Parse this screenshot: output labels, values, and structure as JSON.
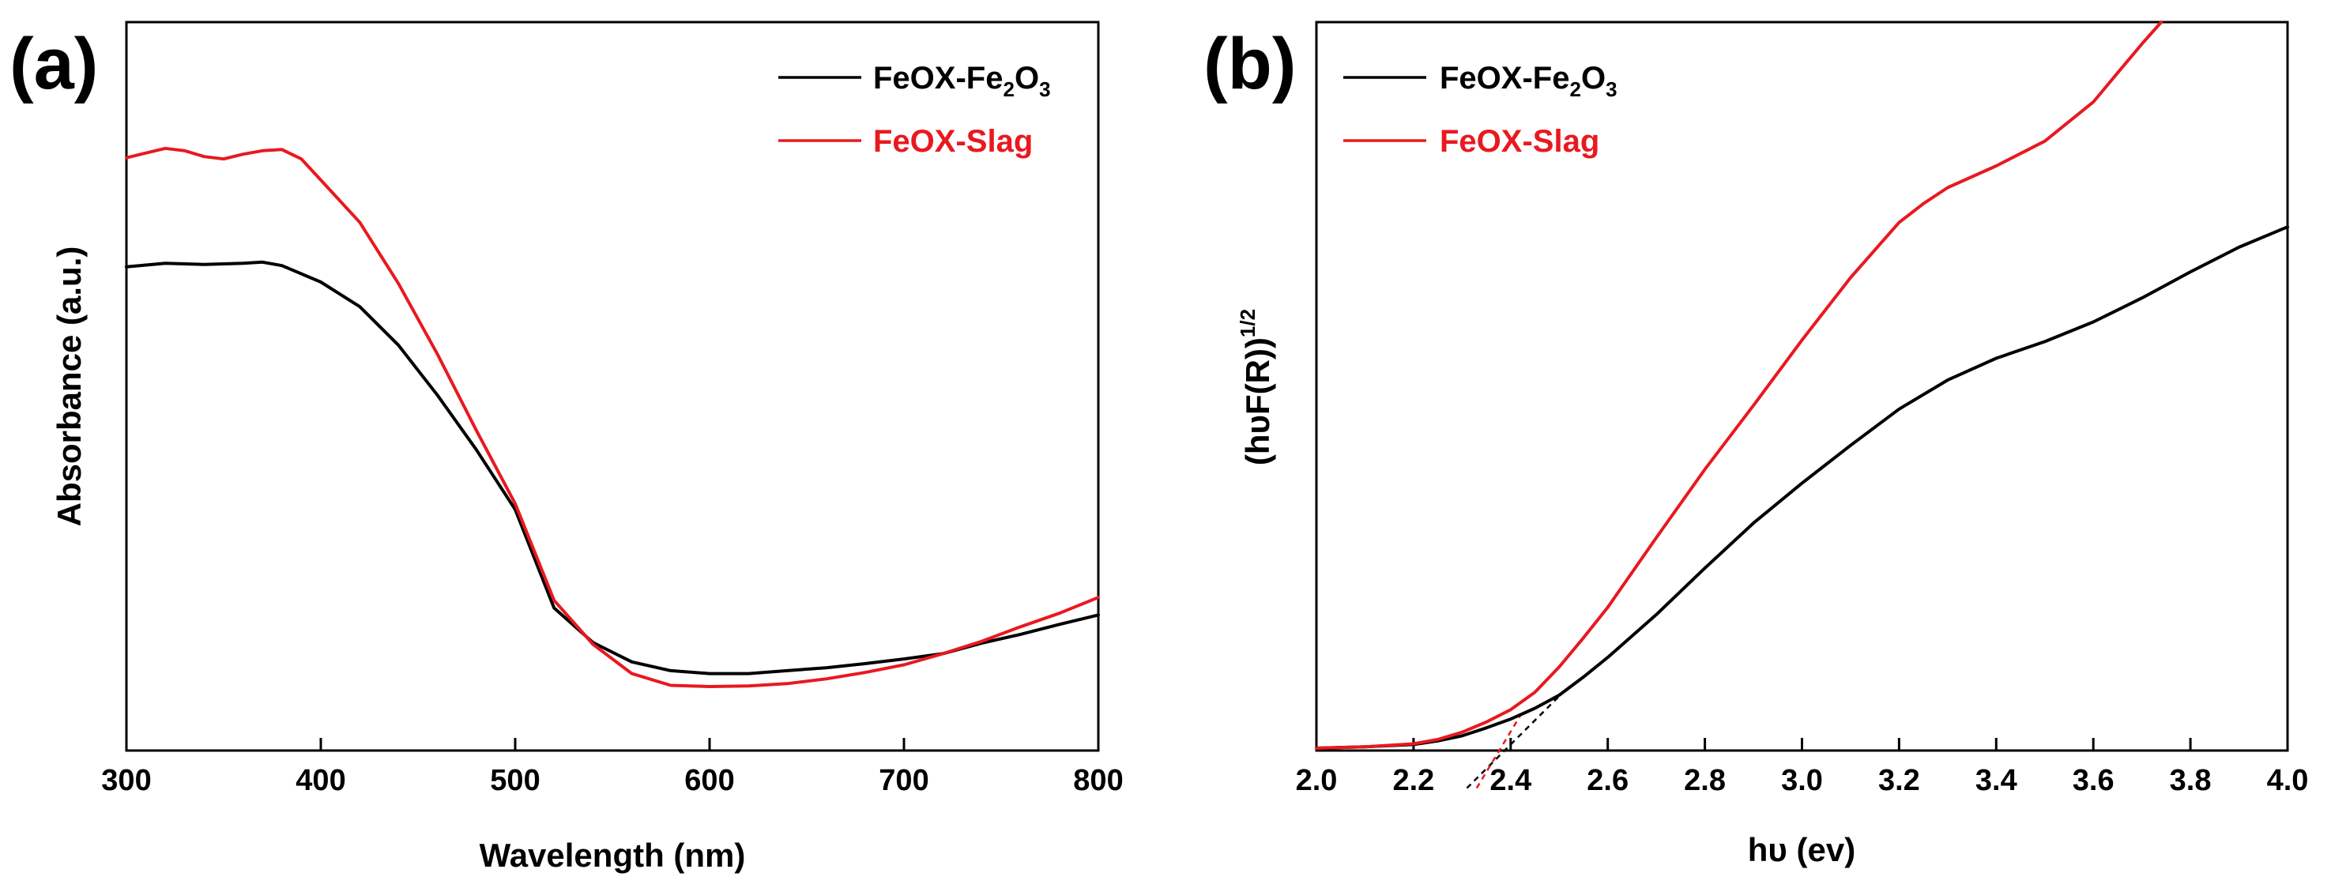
{
  "colors": {
    "black_series": "#000000",
    "red_series": "#e8191f",
    "axis": "#000000",
    "background": "#ffffff"
  },
  "chart_data": [
    {
      "type": "line",
      "panel_label": "(a)",
      "title": "",
      "xlabel": "Wavelength (nm)",
      "ylabel": "Absorbance (a.u.)",
      "xlim": [
        300,
        800
      ],
      "ylim": [
        0,
        1.0
      ],
      "xticks": [
        "300",
        "400",
        "500",
        "600",
        "700",
        "800"
      ],
      "xtick_values": [
        300,
        400,
        500,
        600,
        700,
        800
      ],
      "yticks": [],
      "legend_position": "top-right",
      "series": [
        {
          "name": "FeOX-Fe2O3",
          "legend_main": "FeOX-Fe",
          "legend_sub": "2",
          "legend_main2": "O",
          "legend_sub2": "3",
          "color": "#000000",
          "x": [
            300,
            320,
            340,
            360,
            370,
            380,
            400,
            420,
            440,
            460,
            480,
            500,
            520,
            540,
            560,
            580,
            600,
            620,
            640,
            660,
            680,
            700,
            720,
            740,
            760,
            780,
            800
          ],
          "y": [
            0.774,
            0.78,
            0.778,
            0.78,
            0.782,
            0.776,
            0.748,
            0.706,
            0.64,
            0.555,
            0.462,
            0.36,
            0.192,
            0.133,
            0.1,
            0.085,
            0.08,
            0.08,
            0.085,
            0.09,
            0.097,
            0.105,
            0.114,
            0.132,
            0.147,
            0.164,
            0.18
          ]
        },
        {
          "name": "FeOX-Slag",
          "legend_main": "FeOX-Slag",
          "color": "#e8191f",
          "x": [
            300,
            310,
            320,
            330,
            340,
            350,
            360,
            370,
            380,
            390,
            400,
            420,
            440,
            460,
            480,
            500,
            520,
            540,
            560,
            580,
            600,
            620,
            640,
            660,
            680,
            700,
            720,
            740,
            760,
            780,
            800
          ],
          "y": [
            0.96,
            0.968,
            0.976,
            0.972,
            0.962,
            0.958,
            0.966,
            0.972,
            0.974,
            0.958,
            0.922,
            0.85,
            0.745,
            0.625,
            0.495,
            0.37,
            0.205,
            0.13,
            0.08,
            0.06,
            0.058,
            0.059,
            0.063,
            0.071,
            0.082,
            0.095,
            0.114,
            0.135,
            0.16,
            0.183,
            0.21
          ]
        }
      ]
    },
    {
      "type": "line",
      "panel_label": "(b)",
      "title": "",
      "xlabel": "hυ (ev)",
      "ylabel_main": "(hυF(R))",
      "ylabel_sup": "1/2",
      "xlim": [
        2.0,
        4.0
      ],
      "ylim": [
        0,
        1.0
      ],
      "xticks": [
        "2.0",
        "2.2",
        "2.4",
        "2.6",
        "2.8",
        "3.0",
        "3.2",
        "3.4",
        "3.6",
        "3.8",
        "4.0"
      ],
      "xtick_values": [
        2.0,
        2.2,
        2.4,
        2.6,
        2.8,
        3.0,
        3.2,
        3.4,
        3.6,
        3.8,
        4.0
      ],
      "yticks": [],
      "legend_position": "top-left",
      "series": [
        {
          "name": "FeOX-Fe2O3",
          "legend_main": "FeOX-Fe",
          "legend_sub": "2",
          "legend_main2": "O",
          "legend_sub2": "3",
          "color": "#000000",
          "x": [
            2.0,
            2.1,
            2.2,
            2.25,
            2.3,
            2.35,
            2.4,
            2.45,
            2.5,
            2.55,
            2.6,
            2.7,
            2.8,
            2.9,
            3.0,
            3.1,
            3.2,
            3.3,
            3.4,
            3.5,
            3.6,
            3.7,
            3.8,
            3.9,
            4.0
          ],
          "y": [
            0.0,
            0.002,
            0.005,
            0.01,
            0.017,
            0.028,
            0.04,
            0.055,
            0.073,
            0.098,
            0.125,
            0.184,
            0.248,
            0.31,
            0.365,
            0.417,
            0.467,
            0.507,
            0.537,
            0.56,
            0.587,
            0.62,
            0.656,
            0.69,
            0.718
          ]
        },
        {
          "name": "FeOX-Slag",
          "legend_main": "FeOX-Slag",
          "color": "#e8191f",
          "x": [
            2.0,
            2.1,
            2.2,
            2.25,
            2.3,
            2.35,
            2.4,
            2.45,
            2.5,
            2.55,
            2.6,
            2.7,
            2.8,
            2.9,
            3.0,
            3.1,
            3.2,
            3.25,
            3.3,
            3.4,
            3.5,
            3.6,
            3.65,
            3.7,
            3.74
          ],
          "y": [
            0.0,
            0.002,
            0.006,
            0.012,
            0.022,
            0.036,
            0.053,
            0.077,
            0.112,
            0.152,
            0.194,
            0.29,
            0.384,
            0.472,
            0.562,
            0.648,
            0.724,
            0.75,
            0.772,
            0.802,
            0.836,
            0.89,
            0.93,
            0.97,
            1.0
          ]
        }
      ],
      "tangent_lines": [
        {
          "series": "FeOX-Fe2O3",
          "color": "#000000",
          "x": [
            2.31,
            2.52
          ],
          "y": [
            -0.055,
            0.085
          ]
        },
        {
          "series": "FeOX-Slag",
          "color": "#e8191f",
          "x": [
            2.33,
            2.42
          ],
          "y": [
            -0.055,
            0.045
          ]
        }
      ]
    }
  ]
}
